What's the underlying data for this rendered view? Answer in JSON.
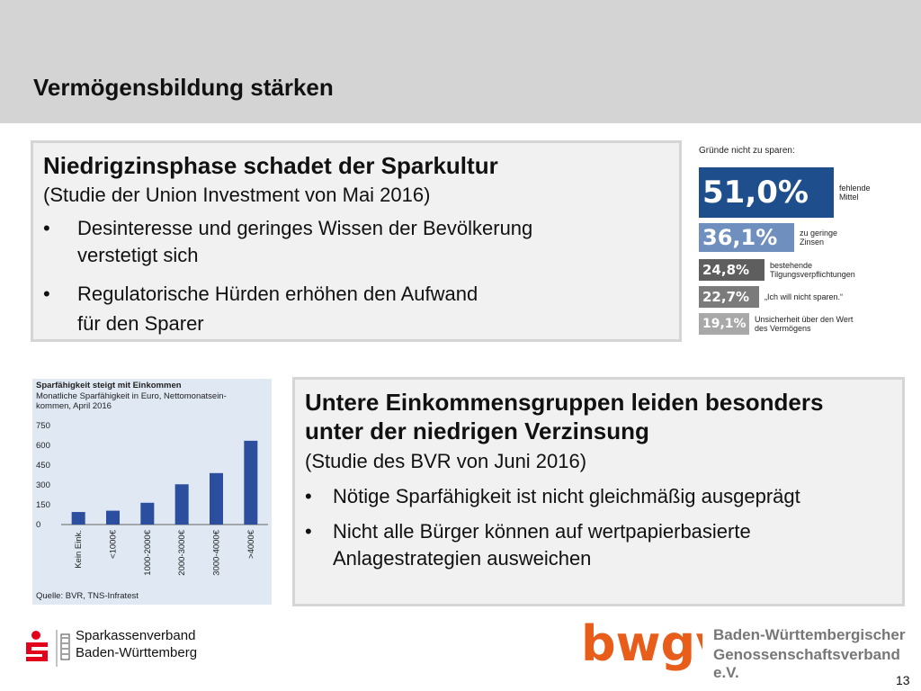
{
  "header": {
    "title": "Vermögensbildung stärken"
  },
  "box1": {
    "title": "Niedrigzinsphase schadet der Sparkultur",
    "subtitle": "(Studie der Union Investment von Mai 2016)",
    "bullet_symbol": "•",
    "bullets": [
      [
        "Desinteresse und geringes Wissen der Bevölkerung",
        "verstetigt sich"
      ],
      [
        "Regulatorische Hürden erhöhen den Aufwand",
        "für den Sparer"
      ]
    ]
  },
  "box2": {
    "title_lines": [
      "Untere Einkommensgruppen leiden besonders",
      "unter der niedrigen Verzinsung"
    ],
    "subtitle": "(Studie des BVR von Juni 2016)",
    "bullet_symbol": "•",
    "bullets": [
      [
        "Nötige Sparfähigkeit ist nicht gleichmäßig ausgeprägt"
      ],
      [
        "Nicht alle Bürger können auf wertpapierbasierte",
        "Anlagestrategien ausweichen"
      ]
    ]
  },
  "chart_data": [
    {
      "type": "bar",
      "title": "Gründe nicht zu sparen:",
      "orientation": "horizontal",
      "categories": [
        "fehlende Mittel",
        "zu geringe Zinsen",
        "bestehende Tilgungsverpflichtungen",
        "„Ich will nicht sparen.“",
        "Unsicherheit über den Wert des Vermögens"
      ],
      "category_lines": [
        [
          "fehlende",
          "Mittel"
        ],
        [
          "zu geringe",
          "Zinsen"
        ],
        [
          "bestehende",
          "Tilgungsverpflichtungen"
        ],
        [
          "„Ich will nicht sparen.“"
        ],
        [
          "Unsicherheit über den Wert",
          "des Vermögens"
        ]
      ],
      "values": [
        51.0,
        36.1,
        24.8,
        22.7,
        19.1
      ],
      "value_labels": [
        "51,0%",
        "36,1%",
        "24,8%",
        "22,7%",
        "19,1%"
      ],
      "colors": [
        "#1f4e8c",
        "#6f8fbf",
        "#5e5e5e",
        "#7b7b7b",
        "#a8a8a8"
      ]
    },
    {
      "type": "bar",
      "title": "Sparfähigkeit steigt mit Einkommen",
      "subtitle_lines": [
        "Monatliche Sparfähigkeit in Euro, Nettomonatsein-",
        "kommen, April 2016"
      ],
      "categories": [
        "Kein Eink.",
        "<1000€",
        "1000-2000€",
        "2000-3000€",
        "3000-4000€",
        ">4000€"
      ],
      "values": [
        95,
        105,
        165,
        305,
        390,
        635
      ],
      "ylim": [
        0,
        750
      ],
      "yticks": [
        0,
        150,
        300,
        450,
        600,
        750
      ],
      "source": "Quelle: BVR, TNS-Infratest",
      "bar_color": "#2b4f9e"
    }
  ],
  "footer": {
    "sparkasse_line1": "Sparkassenverband",
    "sparkasse_line2": "Baden-Württemberg",
    "bwgv_logo_text": "bwgv",
    "bwgv_name_line1": "Baden-Württembergischer",
    "bwgv_name_line2": "Genossenschaftsverband e.V.",
    "page_number": "13",
    "brand_red": "#e3001b",
    "bwgv_orange": "#e85d1a"
  }
}
